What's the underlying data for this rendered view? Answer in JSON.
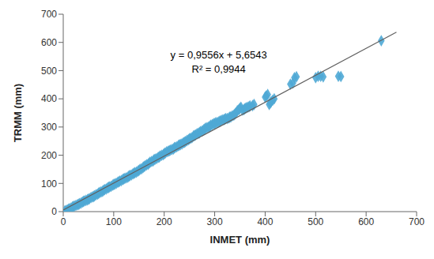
{
  "chart_data": {
    "type": "scatter",
    "xlabel": "INMET (mm)",
    "ylabel": "TRMM (mm)",
    "xlim": [
      0,
      700
    ],
    "ylim": [
      0,
      700
    ],
    "xticks": [
      0,
      100,
      200,
      300,
      400,
      500,
      600,
      700
    ],
    "yticks": [
      0,
      100,
      200,
      300,
      400,
      500,
      600,
      700
    ],
    "grid": false,
    "annotations": [
      "y = 0,9556x + 5,6543",
      "R² = 0,9944"
    ],
    "series": [
      {
        "type": "scatter",
        "color": "#4FA8D5",
        "marker": "diamond",
        "x": [
          3,
          5,
          8,
          10,
          12,
          15,
          18,
          20,
          22,
          25,
          28,
          30,
          32,
          35,
          38,
          40,
          42,
          45,
          48,
          50,
          52,
          55,
          58,
          60,
          62,
          65,
          68,
          70,
          72,
          75,
          78,
          80,
          82,
          85,
          88,
          90,
          92,
          95,
          98,
          100,
          102,
          105,
          108,
          110,
          112,
          115,
          118,
          120,
          122,
          125,
          128,
          130,
          132,
          135,
          138,
          140,
          142,
          145,
          148,
          150,
          152,
          155,
          158,
          160,
          162,
          165,
          168,
          170,
          172,
          175,
          178,
          180,
          182,
          185,
          188,
          190,
          192,
          195,
          198,
          200,
          202,
          205,
          208,
          210,
          212,
          215,
          218,
          220,
          222,
          225,
          228,
          230,
          232,
          235,
          238,
          240,
          242,
          245,
          248,
          250,
          252,
          255,
          258,
          260,
          262,
          265,
          268,
          270,
          272,
          275,
          278,
          280,
          282,
          285,
          288,
          290,
          292,
          295,
          298,
          300,
          302,
          305,
          308,
          310,
          312,
          315,
          318,
          320,
          322,
          325,
          328,
          330,
          332,
          335,
          338,
          340,
          342,
          345,
          348,
          350,
          352,
          355,
          358,
          360,
          362,
          365,
          368,
          370,
          375,
          378,
          400,
          402,
          405,
          408,
          410,
          412,
          415,
          418,
          450,
          455,
          458,
          462,
          500,
          505,
          510,
          515,
          545,
          550,
          630
        ],
        "values": [
          2,
          4,
          6,
          8,
          10,
          12,
          16,
          18,
          20,
          22,
          24,
          26,
          28,
          30,
          34,
          36,
          38,
          40,
          42,
          44,
          46,
          50,
          52,
          54,
          56,
          60,
          62,
          65,
          68,
          70,
          72,
          76,
          78,
          80,
          84,
          86,
          88,
          90,
          94,
          96,
          98,
          100,
          104,
          106,
          108,
          110,
          114,
          116,
          118,
          120,
          122,
          126,
          128,
          130,
          134,
          136,
          138,
          140,
          144,
          146,
          150,
          152,
          156,
          160,
          162,
          166,
          168,
          172,
          175,
          178,
          180,
          184,
          186,
          188,
          192,
          194,
          197,
          200,
          202,
          205,
          208,
          212,
          214,
          216,
          218,
          220,
          222,
          226,
          228,
          230,
          234,
          236,
          238,
          240,
          244,
          246,
          248,
          252,
          255,
          258,
          260,
          262,
          268,
          270,
          272,
          276,
          278,
          280,
          284,
          286,
          290,
          292,
          296,
          298,
          300,
          302,
          306,
          308,
          312,
          312,
          315,
          316,
          318,
          320,
          322,
          325,
          326,
          328,
          330,
          330,
          332,
          335,
          336,
          340,
          342,
          346,
          350,
          358,
          362,
          366,
          370,
          360,
          362,
          365,
          368,
          370,
          372,
          375,
          376,
          380,
          406,
          410,
          415,
          380,
          385,
          390,
          395,
          400,
          452,
          456,
          475,
          478,
          475,
          480,
          480,
          478,
          480,
          479,
          606
        ]
      },
      {
        "type": "line",
        "color": "#606060",
        "x": [
          0,
          660
        ],
        "values": [
          5.6543,
          636.3503
        ]
      }
    ]
  }
}
